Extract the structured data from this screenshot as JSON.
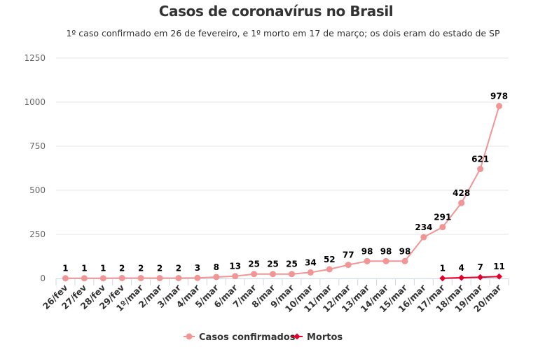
{
  "chart_data": {
    "type": "line",
    "title": "Casos de coronavírus no Brasil",
    "subtitle": "1º caso confirmado em 26 de fevereiro, e 1º morto em 17 de março; os dois eram do estado de SP",
    "xlabel": "",
    "ylabel": "",
    "ylim": [
      0,
      1250
    ],
    "yticks": [
      0,
      250,
      500,
      750,
      1000,
      1250
    ],
    "grid": true,
    "legend_position": "bottom",
    "categories": [
      "26/fev",
      "27/fev",
      "28/fev",
      "29/fev",
      "1º/mar",
      "2/mar",
      "3/mar",
      "4/mar",
      "5/mar",
      "6/mar",
      "7/mar",
      "8/mar",
      "9/mar",
      "10/mar",
      "11/mar",
      "12/mar",
      "13/mar",
      "14/mar",
      "15/mar",
      "16/mar",
      "17/mar",
      "18/mar",
      "19/mar",
      "20/mar"
    ],
    "series": [
      {
        "name": "Casos confirmados",
        "color": "#f19595",
        "marker": "circle",
        "values": [
          1,
          1,
          1,
          2,
          2,
          2,
          2,
          3,
          8,
          13,
          25,
          25,
          25,
          34,
          52,
          77,
          98,
          98,
          98,
          234,
          291,
          428,
          621,
          978
        ]
      },
      {
        "name": "Mortos",
        "color": "#e4002b",
        "marker": "diamond",
        "values": [
          null,
          null,
          null,
          null,
          null,
          null,
          null,
          null,
          null,
          null,
          null,
          null,
          null,
          null,
          null,
          null,
          null,
          null,
          null,
          null,
          1,
          4,
          7,
          11
        ]
      }
    ]
  },
  "colors": {
    "grid": "#e6e6e6",
    "axis": "#ccd6eb",
    "title": "#333333"
  }
}
